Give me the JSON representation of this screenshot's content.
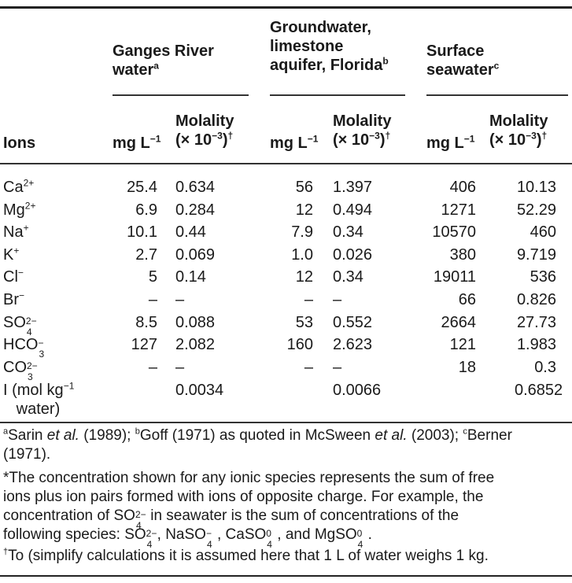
{
  "headers": {
    "group1": {
      "line1": "Ganges River",
      "line2": "water",
      "mark": "a"
    },
    "group2": {
      "line1": "Groundwater,",
      "line2": "limestone",
      "line3": "aquifer, Florida",
      "mark": "b"
    },
    "group3": {
      "line1": "Surface",
      "line2": "seawater",
      "mark": "c"
    },
    "ions": "Ions",
    "mg": "mg L",
    "mg_exp": "−1",
    "mol_line1": "Molality",
    "mol_line2": "(× 10",
    "mol_exp": "−3",
    "mol_close": ")",
    "dagger": "†"
  },
  "rows": [
    {
      "ion": "Ca",
      "charge": "2+",
      "g_mg": "25.4",
      "g_mol": "0.634",
      "f_mg": "56",
      "f_mol": "1.397",
      "s_mg": "406",
      "s_mol": "10.13"
    },
    {
      "ion": "Mg",
      "charge": "2+",
      "g_mg": "6.9",
      "g_mol": "0.284",
      "f_mg": "12",
      "f_mol": "0.494",
      "s_mg": "1271",
      "s_mol": "52.29"
    },
    {
      "ion": "Na",
      "charge": "+",
      "g_mg": "10.1",
      "g_mol": "0.44",
      "f_mg": "7.9",
      "f_mol": "0.34",
      "s_mg": "10570",
      "s_mol": "460"
    },
    {
      "ion": "K",
      "charge": "+",
      "g_mg": "2.7",
      "g_mol": "0.069",
      "f_mg": "1.0",
      "f_mol": "0.026",
      "s_mg": "380",
      "s_mol": "9.719"
    },
    {
      "ion": "Cl",
      "charge": "−",
      "g_mg": "5",
      "g_mol": "0.14",
      "f_mg": "12",
      "f_mol": "0.34",
      "s_mg": "19011",
      "s_mol": "536"
    },
    {
      "ion": "Br",
      "charge": "−",
      "g_mg": "–",
      "g_mol": "–",
      "f_mg": "–",
      "f_mol": "–",
      "s_mg": "66",
      "s_mol": "0.826"
    },
    {
      "ion": "SO",
      "charge": "2−",
      "sub": "4",
      "g_mg": "8.5",
      "g_mol": "0.088",
      "f_mg": "53",
      "f_mol": "0.552",
      "s_mg": "2664",
      "s_mol": "27.73"
    },
    {
      "ion": "HCO",
      "charge": "−",
      "sub": "3",
      "g_mg": "127",
      "g_mol": "2.082",
      "f_mg": "160",
      "f_mol": "2.623",
      "s_mg": "121",
      "s_mol": "1.983"
    },
    {
      "ion": "CO",
      "charge": "2−",
      "sub": "3",
      "g_mg": "–",
      "g_mol": "–",
      "f_mg": "–",
      "f_mol": "–",
      "s_mg": "18",
      "s_mol": "0.3"
    }
  ],
  "ionic_strength": {
    "label1": "I (mol kg",
    "label_exp": "−1",
    "label2": "water)",
    "g": "0.0034",
    "f": "0.0066",
    "s": "0.6852"
  },
  "footnotes": {
    "refs": {
      "a_mark": "a",
      "a_text_pre": "Sarin ",
      "a_etal": "et al.",
      "a_text_post": " (1989); ",
      "b_mark": "b",
      "b_text_pre": "Goff (1971) as quoted in McSween ",
      "b_etal": "et al.",
      "b_text_post": " (2003); ",
      "c_mark": "c",
      "c_text": "Berner",
      "line2": "(1971)."
    },
    "star": {
      "line1": "*The concentration shown for any ionic species represents the sum of free",
      "line2": "ions plus ion pairs formed with ions of opposite charge. For example, the",
      "line3_pre": "concentration of SO",
      "line3_post": " in seawater is the sum of concentrations of the",
      "line4_pre": "following species: SO",
      "line4_mid1": ", NaSO",
      "line4_mid2": ", CaSO",
      "line4_mid3": ", and MgSO",
      "line4_end": "."
    },
    "dagger": {
      "mark": "†",
      "text": "To (simplify calculations it is assumed here that 1 L of water weighs 1 kg."
    }
  }
}
